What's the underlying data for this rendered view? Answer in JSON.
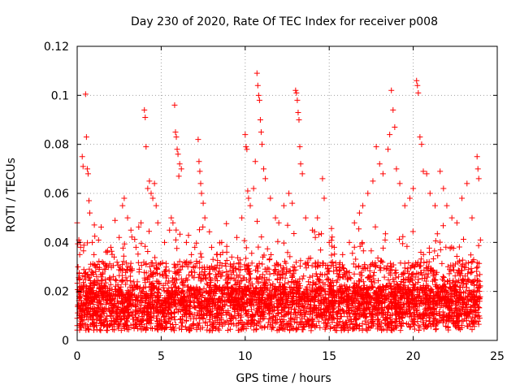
{
  "chart_data": {
    "type": "scatter",
    "title": "Day 230 of 2020, Rate Of TEC Index for receiver p008",
    "xlabel": "GPS time / hours",
    "ylabel": "ROTI / TECUs",
    "xlim": [
      0,
      25
    ],
    "ylim": [
      0,
      0.12
    ],
    "x_ticks": [
      0,
      5,
      10,
      15,
      20,
      25
    ],
    "y_ticks": [
      0,
      0.02,
      0.04,
      0.06,
      0.08,
      0.1,
      0.12
    ],
    "x_tick_labels": [
      "0",
      "5",
      "10",
      "15",
      "20",
      "25"
    ],
    "y_tick_labels": [
      "0",
      "0.02",
      "0.04",
      "0.06",
      "0.08",
      "0.1",
      "0.12"
    ],
    "grid": true,
    "marker": "plus",
    "marker_color": "#ff0000",
    "series": [
      {
        "points": [
          [
            0.0,
            0.048
          ],
          [
            0.05,
            0.03
          ],
          [
            0.1,
            0.041
          ],
          [
            0.15,
            0.035
          ],
          [
            0.2,
            0.038
          ],
          [
            0.3,
            0.075
          ],
          [
            0.35,
            0.071
          ],
          [
            0.5,
            0.1005
          ],
          [
            0.55,
            0.083
          ],
          [
            0.6,
            0.07
          ],
          [
            0.65,
            0.068
          ],
          [
            0.7,
            0.057
          ],
          [
            0.75,
            0.052
          ],
          [
            0.9,
            0.04
          ],
          [
            1.0,
            0.035
          ],
          [
            1.2,
            0.03
          ],
          [
            1.5,
            0.032
          ],
          [
            1.8,
            0.036
          ],
          [
            2.0,
            0.038
          ],
          [
            2.2,
            0.034
          ],
          [
            2.5,
            0.042
          ],
          [
            2.7,
            0.055
          ],
          [
            2.8,
            0.058
          ],
          [
            3.0,
            0.05
          ],
          [
            3.2,
            0.045
          ],
          [
            3.5,
            0.038
          ],
          [
            3.8,
            0.048
          ],
          [
            4.0,
            0.094
          ],
          [
            4.05,
            0.091
          ],
          [
            4.1,
            0.079
          ],
          [
            4.2,
            0.062
          ],
          [
            4.3,
            0.065
          ],
          [
            4.4,
            0.06
          ],
          [
            4.5,
            0.058
          ],
          [
            4.6,
            0.064
          ],
          [
            4.7,
            0.055
          ],
          [
            4.8,
            0.048
          ],
          [
            5.2,
            0.04
          ],
          [
            5.5,
            0.045
          ],
          [
            5.6,
            0.05
          ],
          [
            5.7,
            0.048
          ],
          [
            5.8,
            0.096
          ],
          [
            5.85,
            0.085
          ],
          [
            5.9,
            0.083
          ],
          [
            5.95,
            0.078
          ],
          [
            6.0,
            0.076
          ],
          [
            6.05,
            0.067
          ],
          [
            6.1,
            0.072
          ],
          [
            6.2,
            0.07
          ],
          [
            6.5,
            0.04
          ],
          [
            6.8,
            0.035
          ],
          [
            7.0,
            0.038
          ],
          [
            7.2,
            0.082
          ],
          [
            7.25,
            0.073
          ],
          [
            7.3,
            0.069
          ],
          [
            7.35,
            0.064
          ],
          [
            7.4,
            0.06
          ],
          [
            7.5,
            0.056
          ],
          [
            7.6,
            0.05
          ],
          [
            8.0,
            0.038
          ],
          [
            8.3,
            0.035
          ],
          [
            8.6,
            0.04
          ],
          [
            8.9,
            0.036
          ],
          [
            9.2,
            0.034
          ],
          [
            9.5,
            0.042
          ],
          [
            9.8,
            0.05
          ],
          [
            10.0,
            0.084
          ],
          [
            10.05,
            0.079
          ],
          [
            10.1,
            0.078
          ],
          [
            10.15,
            0.061
          ],
          [
            10.2,
            0.058
          ],
          [
            10.3,
            0.055
          ],
          [
            10.5,
            0.062
          ],
          [
            10.6,
            0.073
          ],
          [
            10.7,
            0.109
          ],
          [
            10.75,
            0.104
          ],
          [
            10.8,
            0.1
          ],
          [
            10.85,
            0.098
          ],
          [
            10.9,
            0.09
          ],
          [
            10.95,
            0.085
          ],
          [
            11.0,
            0.08
          ],
          [
            11.1,
            0.07
          ],
          [
            11.2,
            0.066
          ],
          [
            11.5,
            0.058
          ],
          [
            11.8,
            0.05
          ],
          [
            12.0,
            0.048
          ],
          [
            12.3,
            0.055
          ],
          [
            12.6,
            0.06
          ],
          [
            12.8,
            0.056
          ],
          [
            13.0,
            0.102
          ],
          [
            13.05,
            0.101
          ],
          [
            13.1,
            0.098
          ],
          [
            13.15,
            0.093
          ],
          [
            13.2,
            0.09
          ],
          [
            13.25,
            0.079
          ],
          [
            13.3,
            0.072
          ],
          [
            13.4,
            0.068
          ],
          [
            13.6,
            0.05
          ],
          [
            14.0,
            0.045
          ],
          [
            14.3,
            0.05
          ],
          [
            14.6,
            0.066
          ],
          [
            14.7,
            0.058
          ],
          [
            15.0,
            0.04
          ],
          [
            15.3,
            0.038
          ],
          [
            15.8,
            0.035
          ],
          [
            16.2,
            0.04
          ],
          [
            16.5,
            0.048
          ],
          [
            16.8,
            0.052
          ],
          [
            17.0,
            0.055
          ],
          [
            17.3,
            0.06
          ],
          [
            17.6,
            0.065
          ],
          [
            17.8,
            0.079
          ],
          [
            18.0,
            0.072
          ],
          [
            18.2,
            0.068
          ],
          [
            18.5,
            0.078
          ],
          [
            18.6,
            0.084
          ],
          [
            18.7,
            0.102
          ],
          [
            18.8,
            0.094
          ],
          [
            18.9,
            0.087
          ],
          [
            19.0,
            0.07
          ],
          [
            19.2,
            0.064
          ],
          [
            19.5,
            0.055
          ],
          [
            19.8,
            0.058
          ],
          [
            20.0,
            0.062
          ],
          [
            20.2,
            0.106
          ],
          [
            20.25,
            0.104
          ],
          [
            20.3,
            0.101
          ],
          [
            20.4,
            0.083
          ],
          [
            20.5,
            0.08
          ],
          [
            20.6,
            0.069
          ],
          [
            20.8,
            0.068
          ],
          [
            21.0,
            0.06
          ],
          [
            21.3,
            0.055
          ],
          [
            21.6,
            0.069
          ],
          [
            21.8,
            0.062
          ],
          [
            22.0,
            0.055
          ],
          [
            22.3,
            0.05
          ],
          [
            22.6,
            0.048
          ],
          [
            22.9,
            0.058
          ],
          [
            23.2,
            0.064
          ],
          [
            23.5,
            0.05
          ],
          [
            23.8,
            0.075
          ],
          [
            23.85,
            0.07
          ],
          [
            23.9,
            0.066
          ],
          [
            24.0,
            0.041
          ]
        ]
      }
    ]
  }
}
